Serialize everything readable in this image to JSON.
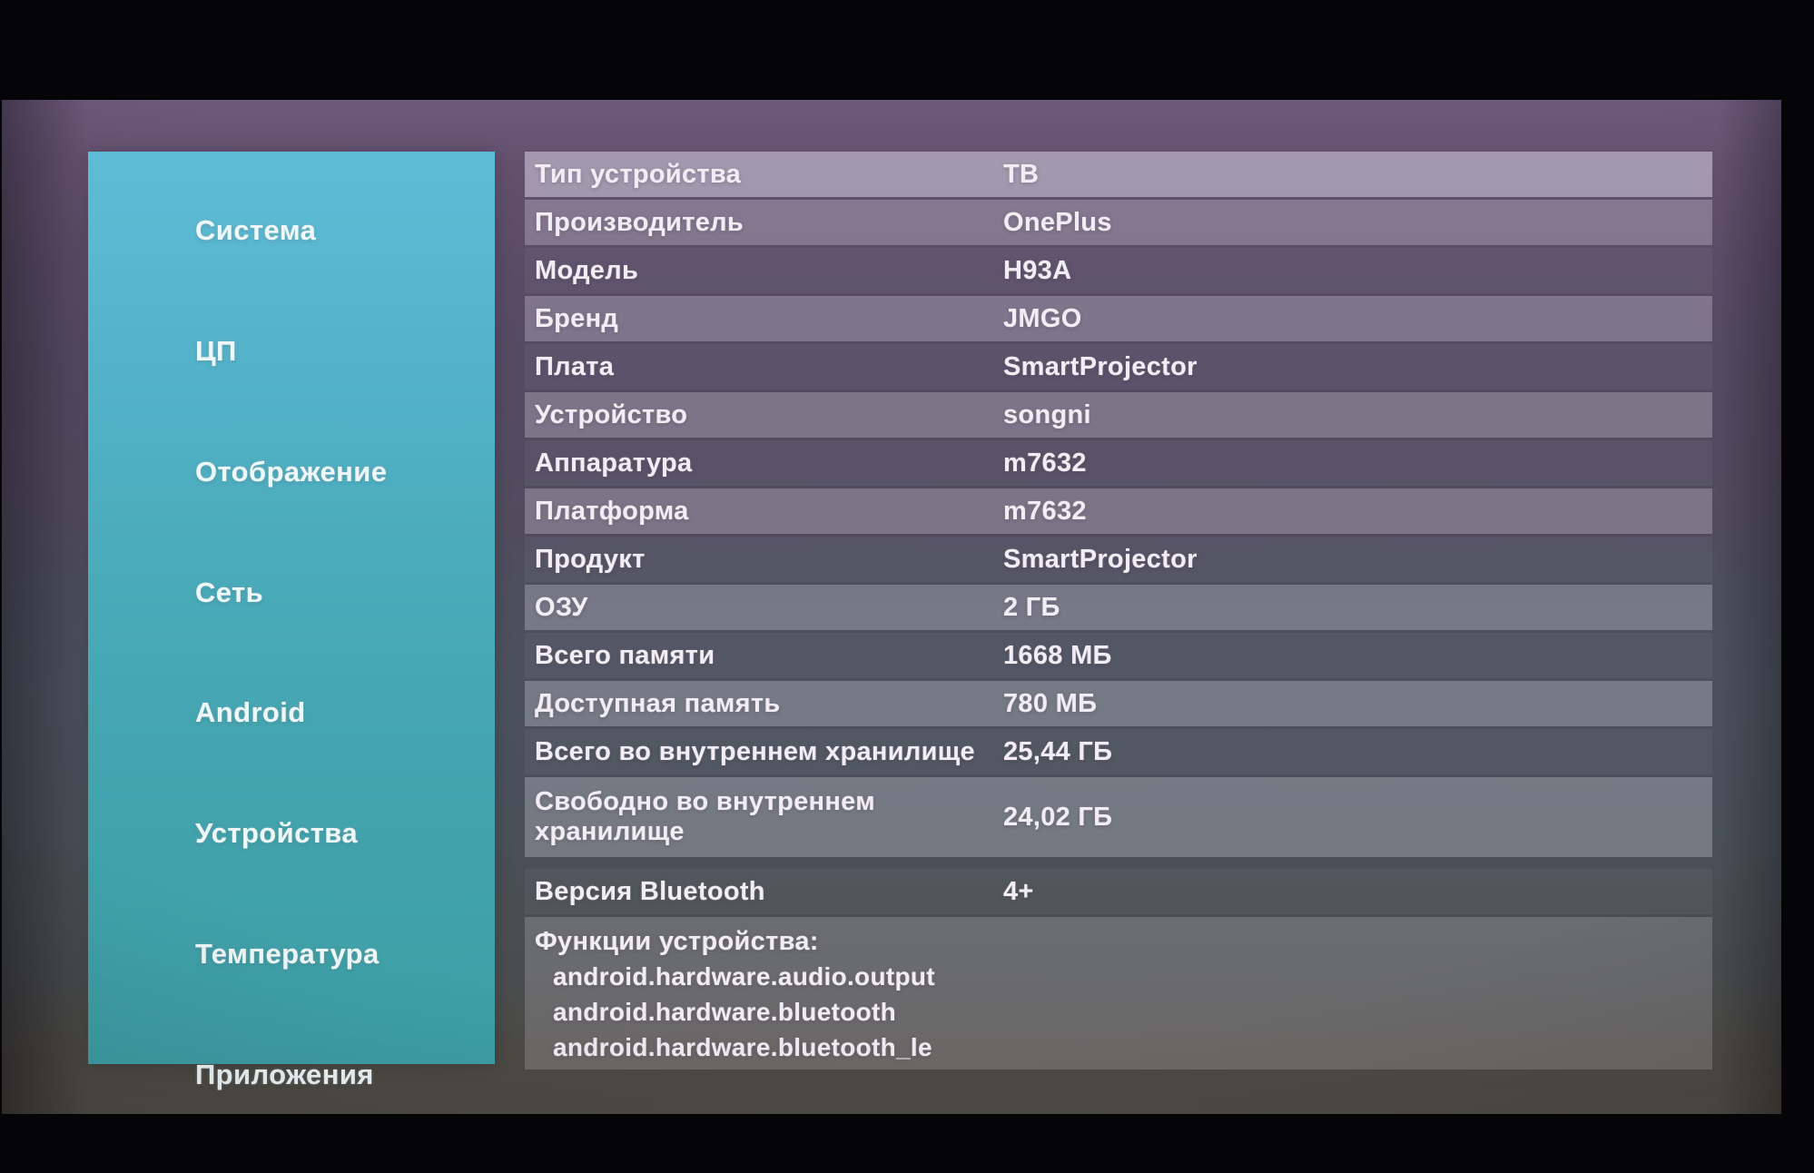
{
  "screen": {
    "kind": "android-projector-system-info",
    "language": "ru"
  },
  "sidebar": {
    "items": [
      {
        "key": "system",
        "label": "Система",
        "selected": true
      },
      {
        "key": "cpu",
        "label": "ЦП",
        "selected": false
      },
      {
        "key": "display",
        "label": "Отображение",
        "selected": false
      },
      {
        "key": "network",
        "label": "Сеть",
        "selected": false
      },
      {
        "key": "android",
        "label": "Android",
        "selected": false
      },
      {
        "key": "devices",
        "label": "Устройства",
        "selected": false
      },
      {
        "key": "temperature",
        "label": "Температура",
        "selected": false
      },
      {
        "key": "apps",
        "label": "Приложения",
        "selected": false
      }
    ]
  },
  "info_panel": {
    "rows": [
      {
        "key": "device-type",
        "label": "Тип устройства",
        "value": "ТВ",
        "selected": true
      },
      {
        "key": "manufacturer",
        "label": "Производитель",
        "value": "OnePlus",
        "selected": false
      },
      {
        "key": "model",
        "label": "Модель",
        "value": "H93A",
        "selected": false
      },
      {
        "key": "brand",
        "label": "Бренд",
        "value": "JMGO",
        "selected": false
      },
      {
        "key": "board",
        "label": "Плата",
        "value": "SmartProjector",
        "selected": false
      },
      {
        "key": "device",
        "label": "Устройство",
        "value": "songni",
        "selected": false
      },
      {
        "key": "hardware",
        "label": "Аппаратура",
        "value": "m7632",
        "selected": false
      },
      {
        "key": "platform",
        "label": "Платформа",
        "value": "m7632",
        "selected": false
      },
      {
        "key": "product",
        "label": "Продукт",
        "value": "SmartProjector",
        "selected": false
      },
      {
        "key": "ram",
        "label": "ОЗУ",
        "value": "2 ГБ",
        "selected": false
      },
      {
        "key": "memory-total",
        "label": "Всего памяти",
        "value": "1668 МБ",
        "selected": false
      },
      {
        "key": "memory-available",
        "label": "Доступная память",
        "value": "780 МБ",
        "selected": false
      },
      {
        "key": "storage-total",
        "label": "Всего во внутреннем хранилище",
        "value": "25,44 ГБ",
        "selected": false
      },
      {
        "key": "storage-free",
        "label": "Свободно во внутреннем хранилище",
        "value": "24,02 ГБ",
        "selected": false
      },
      {
        "key": "bluetooth-version",
        "label": "Версия Bluetooth",
        "value": "4+",
        "selected": false
      }
    ],
    "features": {
      "title": "Функции устройства:",
      "items": [
        "android.hardware.audio.output",
        "android.hardware.bluetooth",
        "android.hardware.bluetooth_le"
      ]
    }
  },
  "colors": {
    "sidebar_top": "#5fbcd7",
    "sidebar_bottom": "#3e9fa6",
    "screen_top": "#6d5a7c",
    "screen_bottom": "#4f4b44",
    "row_highlight": "rgba(244,239,252,0.45)",
    "text": "#f2edf4",
    "frame": "#050406"
  }
}
